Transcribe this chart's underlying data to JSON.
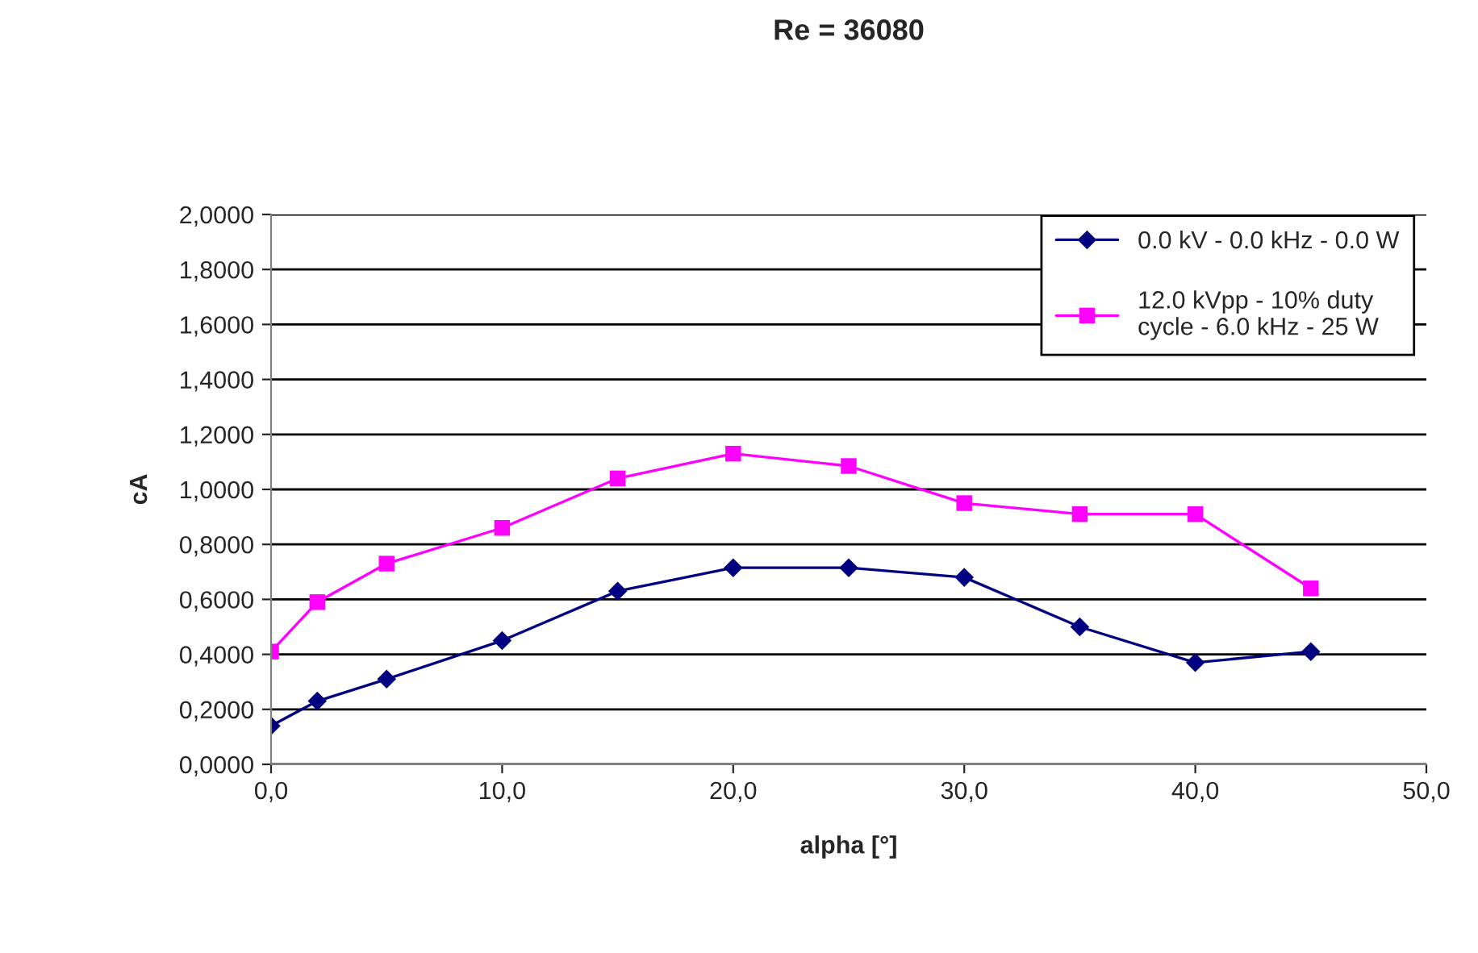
{
  "chart_data": {
    "type": "line",
    "title": "Re = 36080",
    "xlabel": "alpha [°]",
    "ylabel": "cA",
    "x": [
      0,
      2,
      5,
      10,
      15,
      20,
      25,
      30,
      35,
      40,
      45
    ],
    "series": [
      {
        "name": "0.0 kV - 0.0 kHz - 0.0 W",
        "color": "#000080",
        "marker": "diamond",
        "values": [
          0.14,
          0.23,
          0.31,
          0.45,
          0.63,
          0.715,
          0.715,
          0.68,
          0.5,
          0.37,
          0.41
        ]
      },
      {
        "name": "12.0 kVpp - 10% duty\ncycle - 6.0 kHz - 25 W",
        "color": "#ff00ff",
        "marker": "square",
        "values": [
          0.41,
          0.59,
          0.73,
          0.86,
          1.04,
          1.13,
          1.085,
          0.95,
          0.91,
          0.91,
          0.64
        ]
      }
    ],
    "xlim": [
      0,
      50
    ],
    "xticks": [
      {
        "value": 0,
        "label": "0,0"
      },
      {
        "value": 10,
        "label": "10,0"
      },
      {
        "value": 20,
        "label": "20,0"
      },
      {
        "value": 30,
        "label": "30,0"
      },
      {
        "value": 40,
        "label": "40,0"
      },
      {
        "value": 50,
        "label": "50,0"
      }
    ],
    "ylim": [
      0,
      2
    ],
    "yticks": [
      {
        "value": 0,
        "label": "0,0000"
      },
      {
        "value": 0.2,
        "label": "0,2000"
      },
      {
        "value": 0.4,
        "label": "0,4000"
      },
      {
        "value": 0.6,
        "label": "0,6000"
      },
      {
        "value": 0.8,
        "label": "0,8000"
      },
      {
        "value": 1.0,
        "label": "1,0000"
      },
      {
        "value": 1.2,
        "label": "1,2000"
      },
      {
        "value": 1.4,
        "label": "1,4000"
      },
      {
        "value": 1.6,
        "label": "1,6000"
      },
      {
        "value": 1.8,
        "label": "1,8000"
      },
      {
        "value": 2.0,
        "label": "2,0000"
      }
    ],
    "grid": "y",
    "legend": "top right"
  }
}
